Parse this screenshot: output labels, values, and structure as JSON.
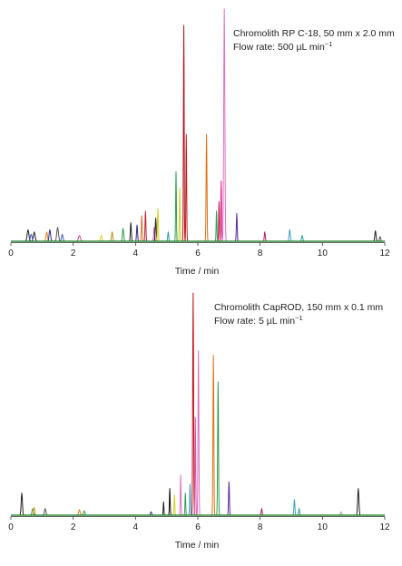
{
  "chart_data": [
    {
      "type": "line",
      "annotation_line1": "Chromolith RP C-18, 50 mm x 2.0 mm",
      "annotation_line2_prefix": "Flow rate: 500 µL min",
      "annotation_line2_sup": "−1",
      "xlabel": "Time / min",
      "ylabel": "",
      "xlim": [
        0,
        12
      ],
      "xticks": [
        0,
        2,
        4,
        6,
        8,
        10,
        12
      ],
      "ylim": [
        0,
        1.0
      ],
      "baseline_color": "#2e8b3a",
      "peaks": [
        {
          "t": 0.55,
          "h": 0.05,
          "w": 0.07,
          "color": "#222222"
        },
        {
          "t": 0.75,
          "h": 0.04,
          "w": 0.07,
          "color": "#222222"
        },
        {
          "t": 0.65,
          "h": 0.03,
          "w": 0.07,
          "color": "#4060c0"
        },
        {
          "t": 1.15,
          "h": 0.04,
          "w": 0.06,
          "color": "#e08020"
        },
        {
          "t": 1.25,
          "h": 0.05,
          "w": 0.06,
          "color": "#2a2a8a"
        },
        {
          "t": 1.5,
          "h": 0.06,
          "w": 0.07,
          "color": "#555555"
        },
        {
          "t": 1.65,
          "h": 0.03,
          "w": 0.06,
          "color": "#4060c0"
        },
        {
          "t": 2.2,
          "h": 0.025,
          "w": 0.08,
          "color": "#d050a0"
        },
        {
          "t": 2.9,
          "h": 0.025,
          "w": 0.06,
          "color": "#e0d020"
        },
        {
          "t": 3.25,
          "h": 0.04,
          "w": 0.05,
          "color": "#b09020"
        },
        {
          "t": 3.6,
          "h": 0.055,
          "w": 0.05,
          "color": "#2a9a4a"
        },
        {
          "t": 3.85,
          "h": 0.08,
          "w": 0.04,
          "color": "#222222"
        },
        {
          "t": 4.05,
          "h": 0.07,
          "w": 0.04,
          "color": "#2a2a8a"
        },
        {
          "t": 4.2,
          "h": 0.11,
          "w": 0.035,
          "color": "#e07020"
        },
        {
          "t": 4.32,
          "h": 0.13,
          "w": 0.035,
          "color": "#c0203a"
        },
        {
          "t": 4.6,
          "h": 0.06,
          "w": 0.04,
          "color": "#d050a0"
        },
        {
          "t": 4.65,
          "h": 0.1,
          "w": 0.04,
          "color": "#222222"
        },
        {
          "t": 4.72,
          "h": 0.14,
          "w": 0.035,
          "color": "#d6d020"
        },
        {
          "t": 5.05,
          "h": 0.04,
          "w": 0.04,
          "color": "#2aa0a0"
        },
        {
          "t": 5.3,
          "h": 0.3,
          "w": 0.03,
          "color": "#2aa050"
        },
        {
          "t": 5.42,
          "h": 0.23,
          "w": 0.03,
          "color": "#d6d020"
        },
        {
          "t": 5.55,
          "h": 0.93,
          "w": 0.03,
          "color": "#b0101a"
        },
        {
          "t": 5.63,
          "h": 0.46,
          "w": 0.03,
          "color": "#c02020"
        },
        {
          "t": 6.28,
          "h": 0.46,
          "w": 0.035,
          "color": "#e07010"
        },
        {
          "t": 6.6,
          "h": 0.13,
          "w": 0.03,
          "color": "#2aa050"
        },
        {
          "t": 6.68,
          "h": 0.17,
          "w": 0.03,
          "color": "#c0204a"
        },
        {
          "t": 6.75,
          "h": 0.26,
          "w": 0.03,
          "color": "#e0208a"
        },
        {
          "t": 6.85,
          "h": 1.0,
          "w": 0.045,
          "color": "#e070c0"
        },
        {
          "t": 7.25,
          "h": 0.12,
          "w": 0.035,
          "color": "#5a2a9a"
        },
        {
          "t": 8.15,
          "h": 0.04,
          "w": 0.04,
          "color": "#b02060"
        },
        {
          "t": 8.95,
          "h": 0.05,
          "w": 0.05,
          "color": "#40a0c0"
        },
        {
          "t": 9.35,
          "h": 0.025,
          "w": 0.05,
          "color": "#2aa0a0"
        },
        {
          "t": 11.7,
          "h": 0.045,
          "w": 0.05,
          "color": "#222222"
        },
        {
          "t": 11.85,
          "h": 0.02,
          "w": 0.05,
          "color": "#555555"
        }
      ]
    },
    {
      "type": "line",
      "annotation_line1": "Chromolith CapROD, 150 mm x 0.1 mm",
      "annotation_line2_prefix": "Flow rate: 5 µL min",
      "annotation_line2_sup": "−1",
      "xlabel": "Time / min",
      "ylabel": "",
      "xlim": [
        0,
        12
      ],
      "xticks": [
        0,
        2,
        4,
        6,
        8,
        10,
        12
      ],
      "ylim": [
        0,
        1.0
      ],
      "baseline_color": "#2e8b3a",
      "peaks": [
        {
          "t": 0.35,
          "h": 0.1,
          "w": 0.05,
          "color": "#222222"
        },
        {
          "t": 0.7,
          "h": 0.03,
          "w": 0.06,
          "color": "#2aa050"
        },
        {
          "t": 0.75,
          "h": 0.035,
          "w": 0.05,
          "color": "#e0a020"
        },
        {
          "t": 1.1,
          "h": 0.03,
          "w": 0.06,
          "color": "#555555"
        },
        {
          "t": 2.2,
          "h": 0.025,
          "w": 0.06,
          "color": "#e08020"
        },
        {
          "t": 2.35,
          "h": 0.02,
          "w": 0.06,
          "color": "#2aa050"
        },
        {
          "t": 4.5,
          "h": 0.015,
          "w": 0.05,
          "color": "#2a2a8a"
        },
        {
          "t": 4.9,
          "h": 0.06,
          "w": 0.03,
          "color": "#222222"
        },
        {
          "t": 5.1,
          "h": 0.12,
          "w": 0.03,
          "color": "#101010"
        },
        {
          "t": 5.25,
          "h": 0.09,
          "w": 0.03,
          "color": "#d6d020"
        },
        {
          "t": 5.45,
          "h": 0.18,
          "w": 0.03,
          "color": "#e070c0"
        },
        {
          "t": 5.6,
          "h": 0.1,
          "w": 0.03,
          "color": "#2aa050"
        },
        {
          "t": 5.75,
          "h": 0.14,
          "w": 0.03,
          "color": "#40a0c0"
        },
        {
          "t": 5.85,
          "h": 1.0,
          "w": 0.035,
          "color": "#c0101a"
        },
        {
          "t": 5.92,
          "h": 0.44,
          "w": 0.03,
          "color": "#d050a0"
        },
        {
          "t": 6.02,
          "h": 0.74,
          "w": 0.035,
          "color": "#e070c0"
        },
        {
          "t": 6.5,
          "h": 0.72,
          "w": 0.035,
          "color": "#e07010"
        },
        {
          "t": 6.65,
          "h": 0.6,
          "w": 0.035,
          "color": "#2aa050"
        },
        {
          "t": 7.0,
          "h": 0.15,
          "w": 0.035,
          "color": "#5a2a9a"
        },
        {
          "t": 8.05,
          "h": 0.03,
          "w": 0.04,
          "color": "#b02060"
        },
        {
          "t": 9.1,
          "h": 0.07,
          "w": 0.04,
          "color": "#40a0c0"
        },
        {
          "t": 9.25,
          "h": 0.03,
          "w": 0.04,
          "color": "#2aa0a0"
        },
        {
          "t": 10.6,
          "h": 0.015,
          "w": 0.05,
          "color": "#aaaaaa"
        },
        {
          "t": 11.15,
          "h": 0.12,
          "w": 0.05,
          "color": "#222222"
        }
      ]
    }
  ]
}
